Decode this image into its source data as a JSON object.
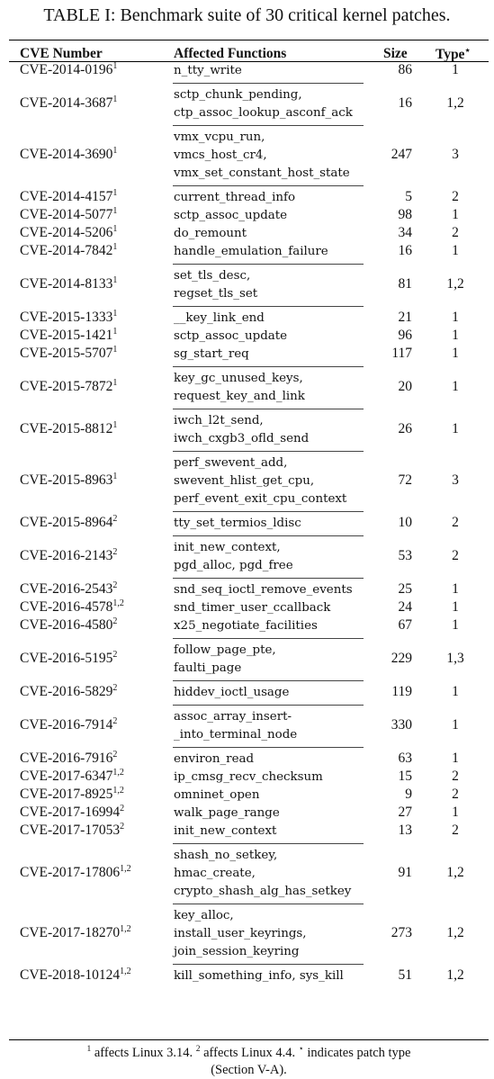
{
  "table": {
    "title": "TABLE I: Benchmark suite of 30 critical kernel patches.",
    "headers": {
      "cve": "CVE Number",
      "functions": "Affected Functions",
      "size": "Size",
      "type": "Type",
      "type_mark": "⋆"
    },
    "rows": [
      {
        "cve": "CVE-2014-0196",
        "sup": "1",
        "functions": [
          "n_tty_write"
        ],
        "size": "86",
        "type": "1"
      },
      {
        "cve": "CVE-2014-3687",
        "sup": "1",
        "functions": [
          "sctp_chunk_pending,",
          "ctp_assoc_lookup_asconf_ack"
        ],
        "size": "16",
        "type": "1,2"
      },
      {
        "cve": "CVE-2014-3690",
        "sup": "1",
        "functions": [
          "vmx_vcpu_run,",
          "vmcs_host_cr4,",
          "vmx_set_constant_host_state"
        ],
        "size": "247",
        "type": "3"
      },
      {
        "cve": "CVE-2014-4157",
        "sup": "1",
        "functions": [
          "current_thread_info"
        ],
        "size": "5",
        "type": "2"
      },
      {
        "cve": "CVE-2014-5077",
        "sup": "1",
        "functions": [
          "sctp_assoc_update"
        ],
        "size": "98",
        "type": "1"
      },
      {
        "cve": "CVE-2014-5206",
        "sup": "1",
        "functions": [
          "do_remount"
        ],
        "size": "34",
        "type": "2"
      },
      {
        "cve": "CVE-2014-7842",
        "sup": "1",
        "functions": [
          "handle_emulation_failure"
        ],
        "size": "16",
        "type": "1"
      },
      {
        "cve": "CVE-2014-8133",
        "sup": "1",
        "functions": [
          "set_tls_desc,",
          "regset_tls_set"
        ],
        "size": "81",
        "type": "1,2"
      },
      {
        "cve": "CVE-2015-1333",
        "sup": "1",
        "functions": [
          "__key_link_end"
        ],
        "size": "21",
        "type": "1"
      },
      {
        "cve": "CVE-2015-1421",
        "sup": "1",
        "functions": [
          "sctp_assoc_update"
        ],
        "size": "96",
        "type": "1"
      },
      {
        "cve": "CVE-2015-5707",
        "sup": "1",
        "functions": [
          "sg_start_req"
        ],
        "size": "117",
        "type": "1"
      },
      {
        "cve": "CVE-2015-7872",
        "sup": "1",
        "functions": [
          "key_gc_unused_keys,",
          "request_key_and_link"
        ],
        "size": "20",
        "type": "1"
      },
      {
        "cve": "CVE-2015-8812",
        "sup": "1",
        "functions": [
          "iwch_l2t_send,",
          "iwch_cxgb3_ofld_send"
        ],
        "size": "26",
        "type": "1"
      },
      {
        "cve": "CVE-2015-8963",
        "sup": "1",
        "functions": [
          "perf_swevent_add,",
          "swevent_hlist_get_cpu,",
          "perf_event_exit_cpu_context"
        ],
        "size": "72",
        "type": "3"
      },
      {
        "cve": "CVE-2015-8964",
        "sup": "2",
        "functions": [
          "tty_set_termios_ldisc"
        ],
        "size": "10",
        "type": "2"
      },
      {
        "cve": "CVE-2016-2143",
        "sup": "2",
        "functions": [
          "init_new_context,",
          "pgd_alloc, pgd_free"
        ],
        "size": "53",
        "type": "2"
      },
      {
        "cve": "CVE-2016-2543",
        "sup": "2",
        "functions": [
          "snd_seq_ioctl_remove_events"
        ],
        "size": "25",
        "type": "1"
      },
      {
        "cve": "CVE-2016-4578",
        "sup": "1,2",
        "functions": [
          "snd_timer_user_ccallback"
        ],
        "size": "24",
        "type": "1"
      },
      {
        "cve": "CVE-2016-4580",
        "sup": "2",
        "functions": [
          "x25_negotiate_facilities"
        ],
        "size": "67",
        "type": "1"
      },
      {
        "cve": "CVE-2016-5195",
        "sup": "2",
        "functions": [
          "follow_page_pte,",
          "faulti_page"
        ],
        "size": "229",
        "type": "1,3"
      },
      {
        "cve": "CVE-2016-5829",
        "sup": "2",
        "functions": [
          "hiddev_ioctl_usage"
        ],
        "size": "119",
        "type": "1"
      },
      {
        "cve": "CVE-2016-7914",
        "sup": "2",
        "functions": [
          "assoc_array_insert-",
          "_into_terminal_node"
        ],
        "size": "330",
        "type": "1"
      },
      {
        "cve": "CVE-2016-7916",
        "sup": "2",
        "functions": [
          "environ_read"
        ],
        "size": "63",
        "type": "1"
      },
      {
        "cve": "CVE-2017-6347",
        "sup": "1,2",
        "functions": [
          "ip_cmsg_recv_checksum"
        ],
        "size": "15",
        "type": "2"
      },
      {
        "cve": "CVE-2017-8925",
        "sup": "1,2",
        "functions": [
          "omninet_open"
        ],
        "size": "9",
        "type": "2"
      },
      {
        "cve": "CVE-2017-16994",
        "sup": "2",
        "functions": [
          "walk_page_range"
        ],
        "size": "27",
        "type": "1"
      },
      {
        "cve": "CVE-2017-17053",
        "sup": "2",
        "functions": [
          "init_new_context"
        ],
        "size": "13",
        "type": "2"
      },
      {
        "cve": "CVE-2017-17806",
        "sup": "1,2",
        "functions": [
          "shash_no_setkey,",
          "hmac_create,",
          "crypto_shash_alg_has_setkey"
        ],
        "size": "91",
        "type": "1,2"
      },
      {
        "cve": "CVE-2017-18270",
        "sup": "1,2",
        "functions": [
          "key_alloc,",
          "install_user_keyrings,",
          "join_session_keyring"
        ],
        "size": "273",
        "type": "1,2"
      },
      {
        "cve": "CVE-2018-10124",
        "sup": "1,2",
        "functions": [
          "kill_something_info, sys_kill"
        ],
        "size": "51",
        "type": "1,2"
      }
    ],
    "footnote": {
      "m1": "1",
      "t1": " affects Linux 3.14. ",
      "m2": "2",
      "t2": " affects Linux 4.4. ",
      "m3": "⋆",
      "t3": " indicates patch type",
      "line2": "(Section V-A)."
    }
  }
}
